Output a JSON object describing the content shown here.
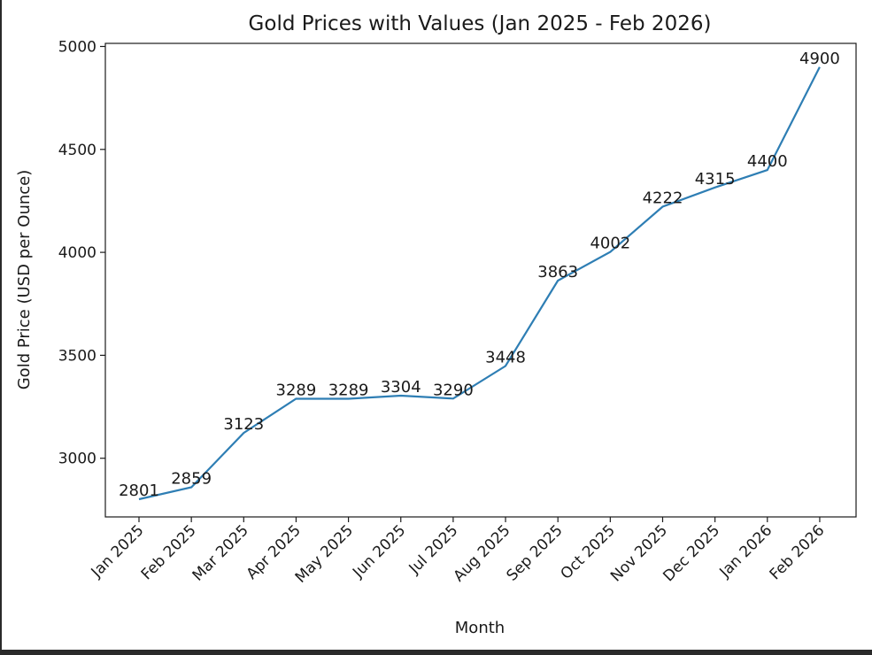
{
  "chart_data": {
    "type": "line",
    "title": "Gold Prices with Values (Jan 2025 - Feb 2026)",
    "xlabel": "Month",
    "ylabel": "Gold Price (USD per Ounce)",
    "categories": [
      "Jan 2025",
      "Feb 2025",
      "Mar 2025",
      "Apr 2025",
      "May 2025",
      "Jun 2025",
      "Jul 2025",
      "Aug 2025",
      "Sep 2025",
      "Oct 2025",
      "Nov 2025",
      "Dec 2025",
      "Jan 2026",
      "Feb 2026"
    ],
    "values": [
      2801,
      2859,
      3123,
      3289,
      3289,
      3304,
      3290,
      3448,
      3863,
      4002,
      4222,
      4315,
      4400,
      4900
    ],
    "data_labels": [
      "2801",
      "2859",
      "3123",
      "3289",
      "3289",
      "3304",
      "3290",
      "3448",
      "3863",
      "4002",
      "4222",
      "4315",
      "4400",
      "4900"
    ],
    "ylim": [
      2715,
      5015
    ],
    "yticks": [
      3000,
      3500,
      4000,
      4500,
      5000
    ],
    "ytick_labels": [
      "3000",
      "3500",
      "4000",
      "4500",
      "5000"
    ],
    "line_color": "#2e7eb4",
    "grid": false,
    "legend": "none"
  }
}
